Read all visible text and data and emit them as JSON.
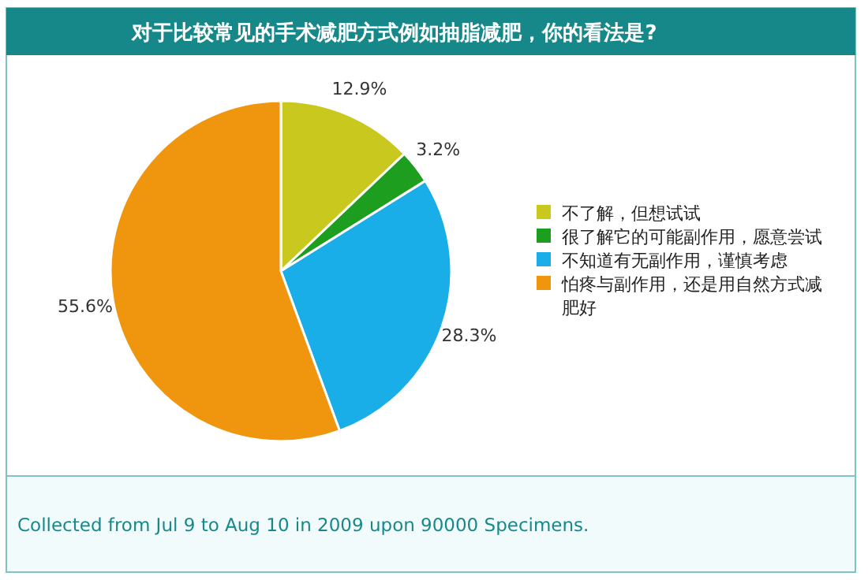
{
  "chart_data": {
    "type": "pie",
    "title": "对于比较常见的手术减肥方式例如抽脂减肥，你的看法是?",
    "categories": [
      "不了解，但想试试",
      "很了解它的可能副作用，愿意尝试",
      "不知道有无副作用，谨慎考虑",
      "怕疼与副作用，还是用自然方式减肥好"
    ],
    "values": [
      12.9,
      3.2,
      28.3,
      55.6
    ],
    "colors": [
      "#c8c81e",
      "#1e9e1e",
      "#1aaee8",
      "#f0960e"
    ],
    "value_labels": [
      "12.9%",
      "3.2%",
      "28.3%",
      "55.6%"
    ],
    "legend": "right",
    "annotations": [
      "Collected from Jul 9 to Aug 10 in 2009 upon 90000 Specimens."
    ]
  }
}
